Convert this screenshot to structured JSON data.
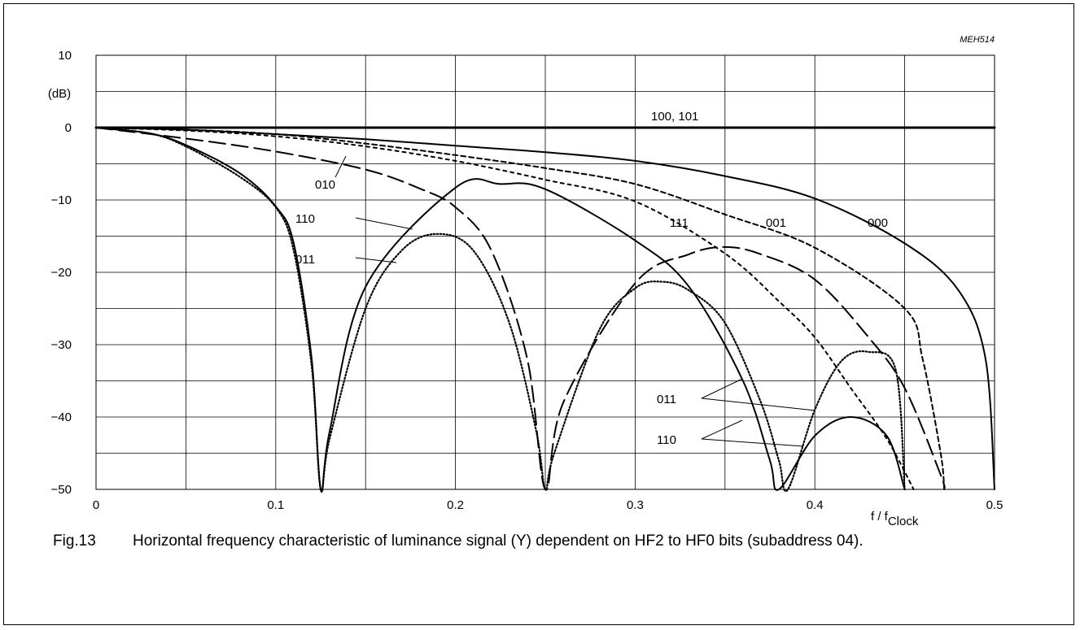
{
  "chart_data": {
    "type": "line",
    "code": "MEH514",
    "ylabel": "(dB)",
    "xlabel_main": "f / f",
    "xlabel_sub": "Clock",
    "xlim": [
      0,
      0.5
    ],
    "ylim": [
      -50,
      10
    ],
    "x_ticks": [
      0,
      0.1,
      0.2,
      0.3,
      0.4,
      0.5
    ],
    "x_tick_labels": [
      "0",
      "0.1",
      "0.2",
      "0.3",
      "0.4",
      "0.5"
    ],
    "y_ticks": [
      10,
      0,
      -10,
      -20,
      -30,
      -40,
      -50
    ],
    "y_tick_labels": [
      "10",
      "0",
      "−10",
      "−20",
      "−30",
      "−40",
      "−50"
    ],
    "grid": true,
    "series": [
      {
        "name": "100, 101",
        "style": "solid",
        "thick": true,
        "x": [
          0,
          0.5
        ],
        "y": [
          0,
          0
        ]
      },
      {
        "name": "000",
        "style": "solid",
        "x": [
          0,
          0.05,
          0.1,
          0.15,
          0.2,
          0.25,
          0.3,
          0.35,
          0.4,
          0.45,
          0.48,
          0.495,
          0.5
        ],
        "y": [
          0,
          -0.3,
          -0.9,
          -1.6,
          -2.5,
          -3.4,
          -4.6,
          -6.7,
          -9.8,
          -16,
          -22.5,
          -32,
          -50
        ]
      },
      {
        "name": "001",
        "style": "short-dash",
        "x": [
          0,
          0.05,
          0.1,
          0.15,
          0.2,
          0.25,
          0.3,
          0.35,
          0.4,
          0.45,
          0.46,
          0.47,
          0.472
        ],
        "y": [
          0,
          -0.3,
          -0.9,
          -2.2,
          -3.8,
          -5.6,
          -7.8,
          -12,
          -16.6,
          -25,
          -32,
          -45,
          -50
        ]
      },
      {
        "name": "111",
        "style": "dotted-dash",
        "x": [
          0,
          0.05,
          0.1,
          0.15,
          0.2,
          0.25,
          0.3,
          0.35,
          0.38,
          0.4,
          0.42,
          0.44,
          0.455
        ],
        "y": [
          0,
          -0.4,
          -1.2,
          -2.6,
          -4.6,
          -7.2,
          -10.2,
          -17.4,
          -24,
          -29,
          -36,
          -43,
          -50
        ]
      },
      {
        "name": "010",
        "style": "long-dash",
        "x": [
          0,
          0.05,
          0.1,
          0.15,
          0.18,
          0.2,
          0.22,
          0.24,
          0.25,
          0.26,
          0.3,
          0.33,
          0.35,
          0.37,
          0.4,
          0.43,
          0.45,
          0.47,
          0.472
        ],
        "y": [
          0,
          -1.5,
          -3.3,
          -5.8,
          -8.4,
          -11,
          -17,
          -32,
          -50,
          -38,
          -21.5,
          -17.5,
          -16.5,
          -17.5,
          -21,
          -29,
          -36,
          -48,
          -50
        ]
      },
      {
        "name": "110",
        "style": "solid",
        "x": [
          0,
          0.03,
          0.05,
          0.08,
          0.1,
          0.11,
          0.12,
          0.125,
          0.13,
          0.15,
          0.2,
          0.225,
          0.25,
          0.3,
          0.33,
          0.36,
          0.375,
          0.38,
          0.4,
          0.42,
          0.44,
          0.45
        ],
        "y": [
          0,
          -0.8,
          -2.4,
          -6.3,
          -10.9,
          -16,
          -32,
          -50,
          -42,
          -22,
          -8.3,
          -7.8,
          -8.5,
          -15.6,
          -22,
          -35,
          -46,
          -50,
          -42.6,
          -40,
          -42.6,
          -50
        ]
      },
      {
        "name": "011",
        "style": "dotted",
        "x": [
          0,
          0.03,
          0.05,
          0.08,
          0.1,
          0.11,
          0.12,
          0.125,
          0.13,
          0.15,
          0.17,
          0.19,
          0.21,
          0.23,
          0.245,
          0.25,
          0.255,
          0.28,
          0.3,
          0.315,
          0.33,
          0.35,
          0.37,
          0.38,
          0.385,
          0.4,
          0.415,
          0.43,
          0.445,
          0.45
        ],
        "y": [
          0,
          -0.8,
          -2.6,
          -6.8,
          -11,
          -17,
          -33,
          -50,
          -43,
          -25,
          -17,
          -14.7,
          -17,
          -27,
          -42,
          -50,
          -45,
          -28,
          -22.2,
          -21.3,
          -22.5,
          -27,
          -38,
          -46,
          -50,
          -39,
          -32.2,
          -31,
          -33.5,
          -50
        ]
      }
    ],
    "annotations": [
      "100, 101",
      "000",
      "001",
      "111",
      "010",
      "110",
      "011",
      "011",
      "110"
    ]
  },
  "caption": {
    "number": "Fig.13",
    "text": "Horizontal frequency characteristic of luminance signal (Y) dependent on HF2 to HF0 bits (subaddress 04)."
  }
}
